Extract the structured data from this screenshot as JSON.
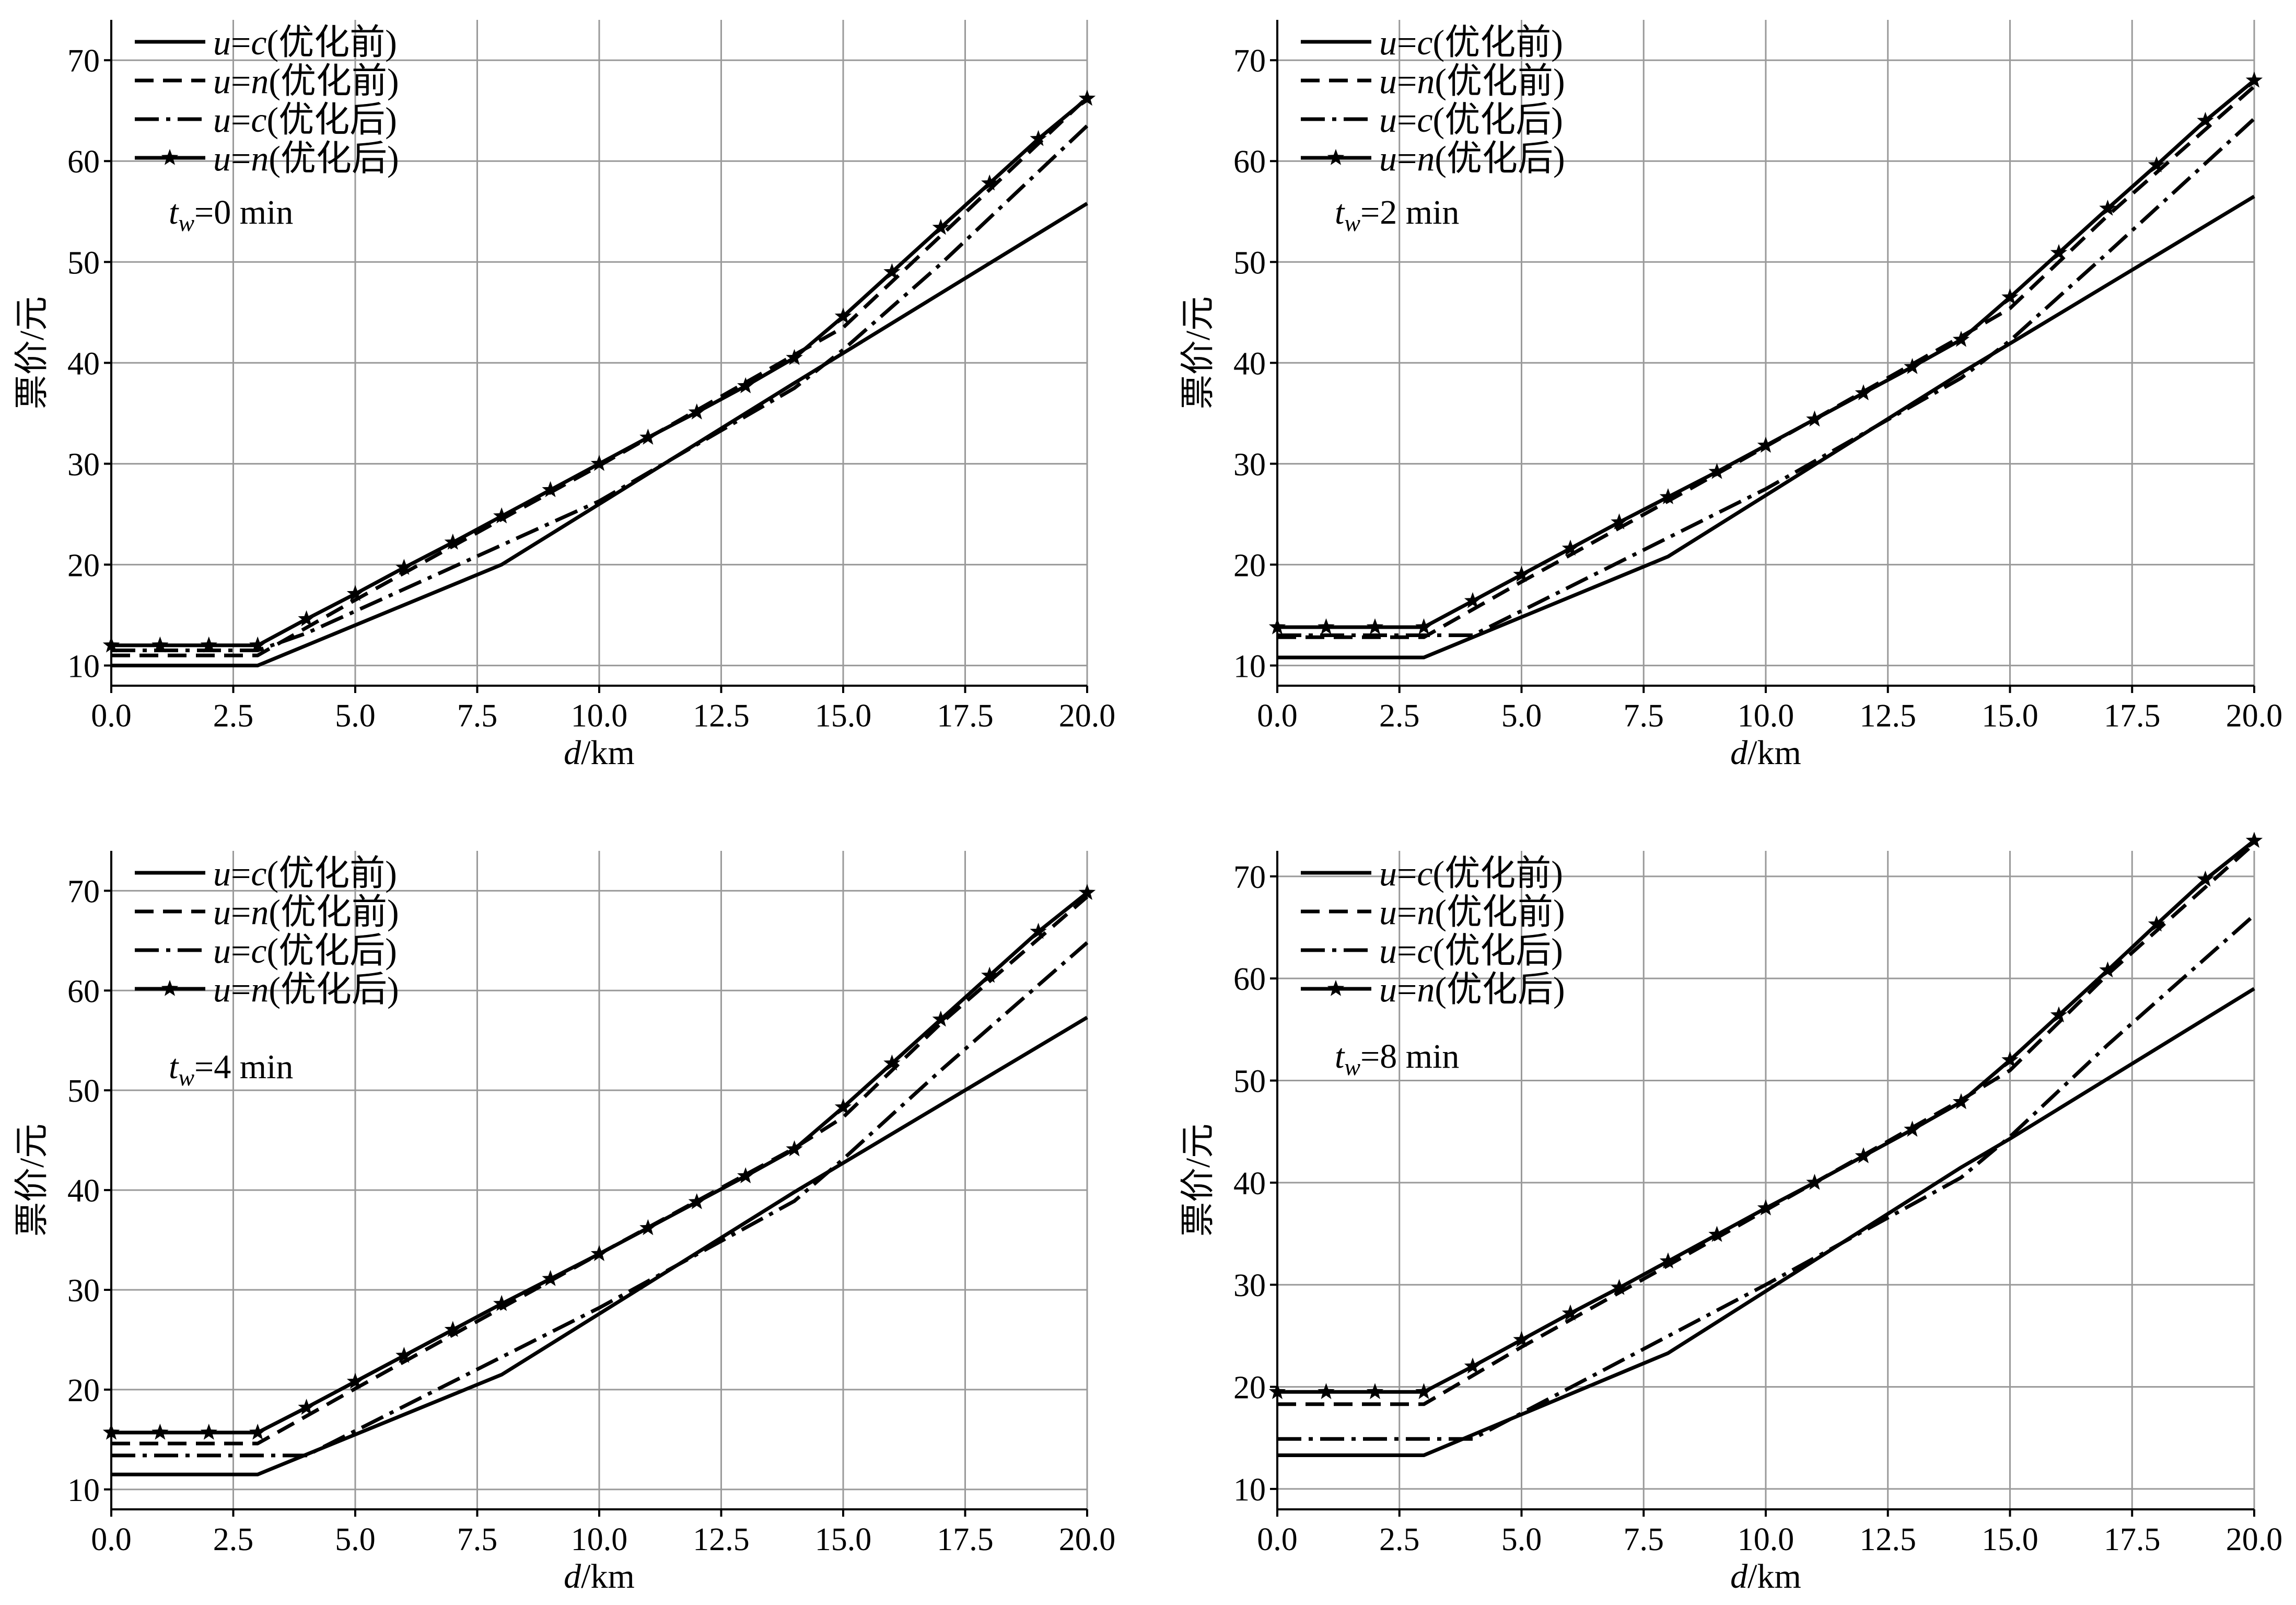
{
  "chart_data": [
    {
      "type": "line",
      "annotation_var": "t",
      "annotation_sub": "w",
      "annotation_val": "=0 min",
      "xlabel_var": "d",
      "xlabel_unit": "/km",
      "ylabel": "票价/元",
      "xlim": [
        0,
        20
      ],
      "ylim": [
        8,
        74
      ],
      "xticks": [
        0,
        2.5,
        5,
        7.5,
        10,
        12.5,
        15,
        17.5,
        20
      ],
      "xtick_labels": [
        "0.0",
        "2.5",
        "5.0",
        "7.5",
        "10.0",
        "12.5",
        "15.0",
        "17.5",
        "20.0"
      ],
      "yticks": [
        10,
        20,
        30,
        40,
        50,
        60,
        70
      ],
      "ytick_labels": [
        "10",
        "20",
        "30",
        "40",
        "50",
        "60",
        "70"
      ],
      "grid": true,
      "legend_position": "top-left",
      "series": [
        {
          "name_var": "u",
          "name_eq": "=",
          "name_val": "c",
          "name_paren": "(优化前)",
          "style": "solid",
          "marker": "none",
          "x": [
            0,
            3,
            8,
            14,
            20
          ],
          "y": [
            10,
            10,
            20,
            38,
            55.8
          ]
        },
        {
          "name_var": "u",
          "name_eq": "=",
          "name_val": "n",
          "name_paren": "(优化前)",
          "style": "dashed",
          "marker": "none",
          "x": [
            0,
            3,
            5,
            8,
            10,
            14,
            15,
            17,
            20
          ],
          "y": [
            11,
            11,
            16.5,
            24.5,
            29.8,
            40.8,
            43.5,
            52.6,
            66.3
          ]
        },
        {
          "name_var": "u",
          "name_eq": "=",
          "name_val": "c",
          "name_paren": "(优化后)",
          "style": "dashdot",
          "marker": "none",
          "x": [
            0,
            3,
            4,
            10,
            14,
            15,
            17,
            20
          ],
          "y": [
            11.5,
            11.5,
            13.2,
            26.3,
            37.5,
            41.3,
            49.8,
            63.5
          ]
        },
        {
          "name_var": "u",
          "name_eq": "=",
          "name_val": "n",
          "name_paren": "(优化后)",
          "style": "solid",
          "marker": "star",
          "x": [
            0,
            1,
            2,
            3,
            4,
            5,
            6,
            7,
            8,
            9,
            10,
            11,
            12,
            13,
            14,
            15,
            16,
            17,
            18,
            19,
            20
          ],
          "y": [
            12,
            12,
            12,
            12,
            14.6,
            17.1,
            19.7,
            22.2,
            24.8,
            27.4,
            30,
            32.6,
            35.1,
            37.7,
            40.5,
            44.6,
            49,
            53.4,
            57.8,
            62.2,
            66.2
          ]
        }
      ]
    },
    {
      "type": "line",
      "annotation_var": "t",
      "annotation_sub": "w",
      "annotation_val": "=2 min",
      "xlabel_var": "d",
      "xlabel_unit": "/km",
      "ylabel": "票价/元",
      "xlim": [
        0,
        20
      ],
      "ylim": [
        8,
        74
      ],
      "xticks": [
        0,
        2.5,
        5,
        7.5,
        10,
        12.5,
        15,
        17.5,
        20
      ],
      "xtick_labels": [
        "0.0",
        "2.5",
        "5.0",
        "7.5",
        "10.0",
        "12.5",
        "15.0",
        "17.5",
        "20.0"
      ],
      "yticks": [
        10,
        20,
        30,
        40,
        50,
        60,
        70
      ],
      "ytick_labels": [
        "10",
        "20",
        "30",
        "40",
        "50",
        "60",
        "70"
      ],
      "grid": true,
      "legend_position": "top-left",
      "series": [
        {
          "name_var": "u",
          "name_eq": "=",
          "name_val": "c",
          "name_paren": "(优化前)",
          "style": "solid",
          "marker": "none",
          "x": [
            0,
            3,
            8,
            14,
            20
          ],
          "y": [
            10.8,
            10.8,
            20.8,
            39,
            56.5
          ]
        },
        {
          "name_var": "u",
          "name_eq": "=",
          "name_val": "n",
          "name_paren": "(优化前)",
          "style": "dashed",
          "marker": "none",
          "x": [
            0,
            3,
            5,
            8,
            10,
            14,
            15,
            17,
            20
          ],
          "y": [
            12.8,
            12.8,
            18.3,
            26.3,
            31.7,
            42.6,
            45.4,
            54.6,
            67.4
          ]
        },
        {
          "name_var": "u",
          "name_eq": "=",
          "name_val": "c",
          "name_paren": "(优化后)",
          "style": "dashdot",
          "marker": "none",
          "x": [
            0,
            3,
            4,
            10,
            14,
            15,
            17,
            20
          ],
          "y": [
            13,
            13,
            13,
            27.5,
            38.5,
            42.2,
            50.9,
            64.2
          ]
        },
        {
          "name_var": "u",
          "name_eq": "=",
          "name_val": "n",
          "name_paren": "(优化后)",
          "style": "solid",
          "marker": "star",
          "x": [
            0,
            1,
            2,
            3,
            4,
            5,
            6,
            7,
            8,
            9,
            10,
            11,
            12,
            13,
            14,
            15,
            16,
            17,
            18,
            19,
            20
          ],
          "y": [
            13.8,
            13.8,
            13.8,
            13.8,
            16.4,
            19,
            21.6,
            24.2,
            26.7,
            29.2,
            31.8,
            34.4,
            37,
            39.6,
            42.3,
            46.5,
            50.9,
            55.3,
            59.6,
            64,
            68
          ]
        }
      ]
    },
    {
      "type": "line",
      "annotation_var": "t",
      "annotation_sub": "w",
      "annotation_val": "=4 min",
      "xlabel_var": "d",
      "xlabel_unit": "/km",
      "ylabel": "票价/元",
      "xlim": [
        0,
        20
      ],
      "ylim": [
        8,
        74
      ],
      "xticks": [
        0,
        2.5,
        5,
        7.5,
        10,
        12.5,
        15,
        17.5,
        20
      ],
      "xtick_labels": [
        "0.0",
        "2.5",
        "5.0",
        "7.5",
        "10.0",
        "12.5",
        "15.0",
        "17.5",
        "20.0"
      ],
      "yticks": [
        10,
        20,
        30,
        40,
        50,
        60,
        70
      ],
      "ytick_labels": [
        "10",
        "20",
        "30",
        "40",
        "50",
        "60",
        "70"
      ],
      "grid": true,
      "legend_position": "top-left",
      "series": [
        {
          "name_var": "u",
          "name_eq": "=",
          "name_val": "c",
          "name_paren": "(优化前)",
          "style": "solid",
          "marker": "none",
          "x": [
            0,
            3,
            8,
            14,
            20
          ],
          "y": [
            11.5,
            11.5,
            21.5,
            39.8,
            57.3
          ]
        },
        {
          "name_var": "u",
          "name_eq": "=",
          "name_val": "n",
          "name_paren": "(优化前)",
          "style": "dashed",
          "marker": "none",
          "x": [
            0,
            3,
            5,
            8,
            10,
            14,
            15,
            17,
            20
          ],
          "y": [
            14.6,
            14.6,
            20.1,
            28.2,
            33.6,
            44.2,
            47.3,
            56.7,
            69.4
          ]
        },
        {
          "name_var": "u",
          "name_eq": "=",
          "name_val": "c",
          "name_paren": "(优化后)",
          "style": "dashdot",
          "marker": "none",
          "x": [
            0,
            3,
            4,
            10,
            14,
            15,
            17,
            20
          ],
          "y": [
            13.4,
            13.4,
            13.4,
            28.2,
            38.9,
            43.1,
            52,
            64.8
          ]
        },
        {
          "name_var": "u",
          "name_eq": "=",
          "name_val": "n",
          "name_paren": "(优化后)",
          "style": "solid",
          "marker": "star",
          "x": [
            0,
            1,
            2,
            3,
            4,
            5,
            6,
            7,
            8,
            9,
            10,
            11,
            12,
            13,
            14,
            15,
            16,
            17,
            18,
            19,
            20
          ],
          "y": [
            15.7,
            15.7,
            15.7,
            15.7,
            18.2,
            20.8,
            23.4,
            26,
            28.6,
            31.1,
            33.6,
            36.2,
            38.8,
            41.4,
            44.1,
            48.3,
            52.7,
            57.1,
            61.5,
            65.9,
            69.8
          ]
        }
      ]
    },
    {
      "type": "line",
      "annotation_var": "t",
      "annotation_sub": "w",
      "annotation_val": "=8 min",
      "xlabel_var": "d",
      "xlabel_unit": "/km",
      "ylabel": "票价/元",
      "xlim": [
        0,
        20
      ],
      "ylim": [
        8,
        72.5
      ],
      "xticks": [
        0,
        2.5,
        5,
        7.5,
        10,
        12.5,
        15,
        17.5,
        20
      ],
      "xtick_labels": [
        "0.0",
        "2.5",
        "5.0",
        "7.5",
        "10.0",
        "12.5",
        "15.0",
        "17.5",
        "20.0"
      ],
      "yticks": [
        10,
        20,
        30,
        40,
        50,
        60,
        70
      ],
      "ytick_labels": [
        "10",
        "20",
        "30",
        "40",
        "50",
        "60",
        "70"
      ],
      "grid": true,
      "legend_position": "top-left",
      "series": [
        {
          "name_var": "u",
          "name_eq": "=",
          "name_val": "c",
          "name_paren": "(优化前)",
          "style": "solid",
          "marker": "none",
          "x": [
            0,
            3,
            8,
            14,
            15,
            20
          ],
          "y": [
            13.3,
            13.3,
            23.3,
            41.5,
            44.3,
            59
          ]
        },
        {
          "name_var": "u",
          "name_eq": "=",
          "name_val": "n",
          "name_paren": "(优化前)",
          "style": "dashed",
          "marker": "none",
          "x": [
            0,
            3,
            5,
            8,
            10,
            14,
            15,
            17,
            20
          ],
          "y": [
            18.3,
            18.3,
            23.9,
            31.9,
            37.3,
            48.1,
            51,
            60.4,
            73.2
          ]
        },
        {
          "name_var": "u",
          "name_eq": "=",
          "name_val": "c",
          "name_paren": "(优化后)",
          "style": "dashdot",
          "marker": "none",
          "x": [
            0,
            3,
            4,
            10,
            14,
            15,
            17,
            20
          ],
          "y": [
            14.9,
            14.9,
            14.9,
            30,
            40.5,
            44.5,
            53.5,
            66.2
          ]
        },
        {
          "name_var": "u",
          "name_eq": "=",
          "name_val": "n",
          "name_paren": "(优化后)",
          "style": "solid",
          "marker": "star",
          "x": [
            0,
            1,
            2,
            3,
            4,
            5,
            6,
            7,
            8,
            9,
            10,
            11,
            12,
            13,
            14,
            15,
            16,
            17,
            18,
            19,
            20
          ],
          "y": [
            19.5,
            19.5,
            19.5,
            19.5,
            22,
            24.6,
            27.2,
            29.7,
            32.3,
            34.9,
            37.5,
            40,
            42.6,
            45.2,
            47.9,
            52,
            56.4,
            60.8,
            65.3,
            69.7,
            73.5
          ]
        }
      ]
    }
  ]
}
